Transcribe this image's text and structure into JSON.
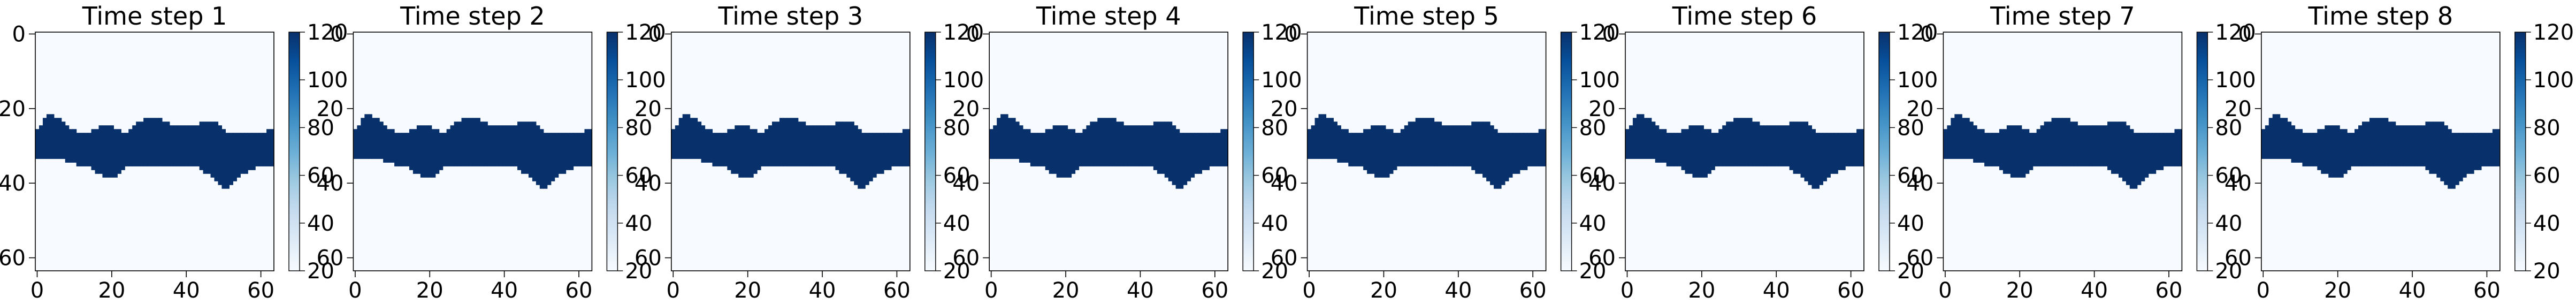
{
  "chart_data": {
    "type": "heatmap",
    "colormap": "Blues",
    "colors": {
      "low": "#f7fbff",
      "high": "#08306b",
      "stops": [
        "#f7fbff",
        "#deebf7",
        "#c6dbef",
        "#9ecae1",
        "#6baed6",
        "#4292c6",
        "#2171b5",
        "#08519c",
        "#08306b"
      ]
    },
    "grid_size": [
      64,
      64
    ],
    "axis_range": {
      "x": [
        0,
        63
      ],
      "y": [
        63,
        0
      ]
    },
    "x_ticks": [
      "0",
      "20",
      "40",
      "60"
    ],
    "y_ticks": [
      "0",
      "20",
      "40",
      "60"
    ],
    "colorbar": {
      "range": [
        20,
        120
      ],
      "ticks": [
        "20",
        "40",
        "60",
        "80",
        "100",
        "120"
      ]
    },
    "background_value": 20,
    "channel_value": 120,
    "channel_profile": {
      "columns": [
        0,
        3,
        4,
        6,
        7,
        8,
        9,
        12,
        14,
        15,
        17,
        19,
        20,
        22,
        23,
        24,
        25,
        26,
        27,
        28,
        29,
        31,
        33,
        35,
        37,
        39,
        41,
        43,
        44,
        46,
        48,
        49,
        50,
        51,
        52,
        53,
        55,
        57,
        59,
        61,
        62,
        63
      ],
      "top_row": [
        26,
        22,
        22,
        23,
        24,
        25,
        26,
        27,
        27,
        26,
        25,
        25,
        25,
        26,
        27,
        27,
        26,
        25,
        24,
        24,
        23,
        23,
        23,
        24,
        25,
        25,
        25,
        25,
        24,
        24,
        24,
        25,
        26,
        27,
        27,
        27,
        27,
        27,
        27,
        27,
        26,
        26
      ],
      "bottom_row": [
        33,
        33,
        33,
        33,
        33,
        34,
        34,
        35,
        35,
        36,
        37,
        38,
        38,
        37,
        36,
        35,
        35,
        35,
        35,
        35,
        35,
        35,
        35,
        35,
        35,
        35,
        35,
        35,
        36,
        37,
        39,
        40,
        41,
        41,
        40,
        39,
        37,
        36,
        35,
        35,
        35,
        35
      ]
    },
    "panels": [
      {
        "title": "Time step 1"
      },
      {
        "title": "Time step 2"
      },
      {
        "title": "Time step 3"
      },
      {
        "title": "Time step 4"
      },
      {
        "title": "Time step 5"
      },
      {
        "title": "Time step 6"
      },
      {
        "title": "Time step 7"
      },
      {
        "title": "Time step 8"
      }
    ]
  }
}
